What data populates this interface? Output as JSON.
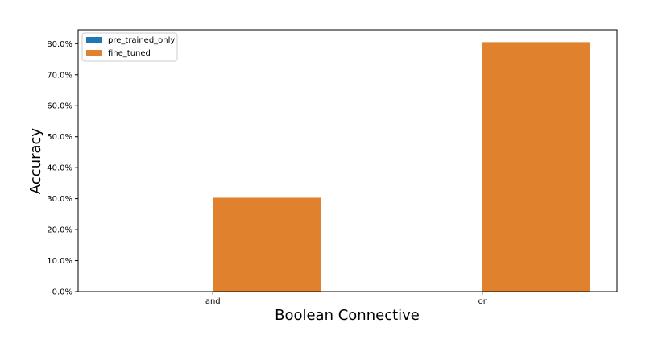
{
  "chart_data": {
    "type": "bar",
    "categories": [
      "and",
      "or"
    ],
    "series": [
      {
        "name": "pre_trained_only",
        "values": [
          0,
          0
        ]
      },
      {
        "name": "fine_tuned",
        "values": [
          30.3,
          80.5
        ]
      }
    ],
    "xlabel": "Boolean Connective",
    "ylabel": "Accuracy",
    "ylim": [
      0,
      84.5
    ],
    "yticks": [
      0,
      10,
      20,
      30,
      40,
      50,
      60,
      70,
      80
    ],
    "tick_format": "percent_1dp",
    "grid": false,
    "legend_position": "top-left",
    "colors": {
      "pre_trained_only": "#1f77b4",
      "fine_tuned": "#e0812e"
    }
  }
}
